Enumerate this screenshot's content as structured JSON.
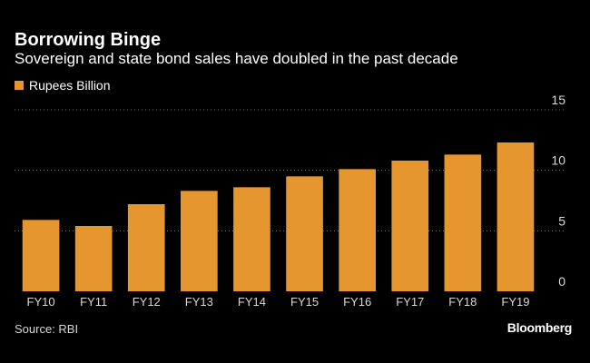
{
  "chart_data": {
    "type": "bar",
    "title": "Borrowing Binge",
    "subtitle": "Sovereign and state bond sales have doubled in the past decade",
    "legend": [
      "Rupees Billion"
    ],
    "categories": [
      "FY10",
      "FY11",
      "FY12",
      "FY13",
      "FY14",
      "FY15",
      "FY16",
      "FY17",
      "FY18",
      "FY19"
    ],
    "series": [
      {
        "name": "Rupees Billion",
        "values": [
          5.9,
          5.4,
          7.2,
          8.3,
          8.6,
          9.5,
          10.1,
          10.8,
          11.3,
          12.3
        ]
      }
    ],
    "xlabel": "",
    "ylabel": "",
    "ylim": [
      0,
      15
    ],
    "yticks": [
      0,
      5,
      10,
      15
    ],
    "y_axis_position": "right",
    "grid": "dotted horizontal"
  },
  "footer": {
    "source": "Source: RBI",
    "brand": "Bloomberg"
  },
  "colors": {
    "background": "#000000",
    "bar": "#e6962e",
    "text": "#ffffff",
    "grid": "#777777",
    "axis_text": "#d9d9d9"
  }
}
